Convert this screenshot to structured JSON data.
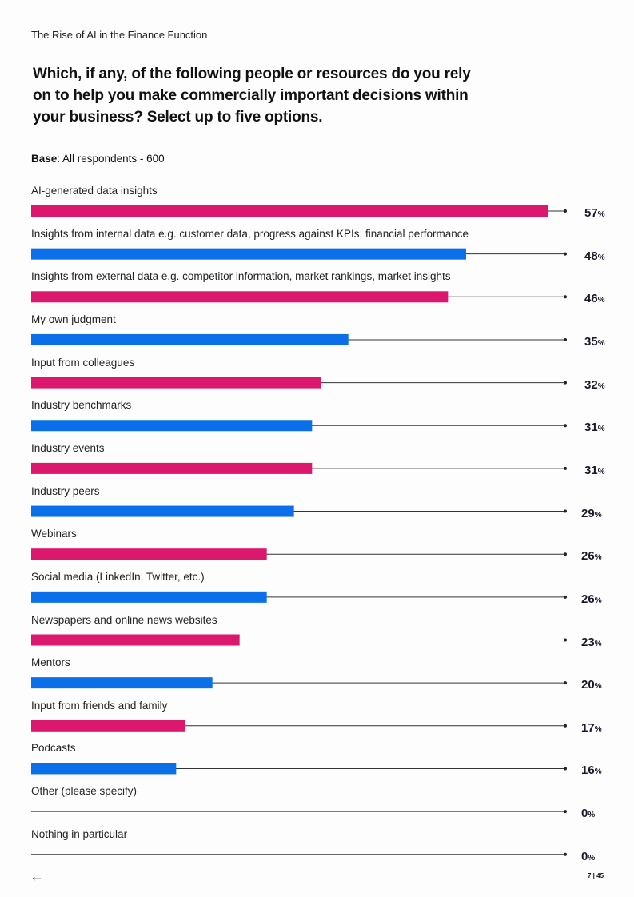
{
  "header": {
    "doc_title": "The Rise of AI in the Finance Function",
    "question": "Which, if any, of the following people or resources do you rely on to help you make commercially important decisions within your business? Select up to five options.",
    "base_label": "Base",
    "base_text": ": All respondents -  600"
  },
  "footer": {
    "page": "7 | 45",
    "back_icon": "arrow-left-icon"
  },
  "colors": {
    "pink": "#DC176E",
    "blue": "#0A6FE8",
    "line": "#333333"
  },
  "chart_data": {
    "type": "bar",
    "orientation": "horizontal",
    "unit": "%",
    "xlim": [
      0,
      100
    ],
    "categories": [
      "AI-generated data insights",
      "Insights from internal data e.g. customer data, progress against KPIs, financial performance",
      "Insights from external data e.g. competitor information, market rankings, market insights",
      "My own judgment",
      "Input from colleagues",
      "Industry benchmarks",
      "Industry events",
      "Industry peers",
      "Webinars",
      "Social media (LinkedIn, Twitter, etc.)",
      "Newspapers and online news websites",
      "Mentors",
      "Input from friends and family",
      "Podcasts",
      "Other (please specify)",
      "Nothing in particular"
    ],
    "values": [
      57,
      48,
      46,
      35,
      32,
      31,
      31,
      29,
      26,
      26,
      23,
      20,
      17,
      16,
      0,
      0
    ]
  }
}
